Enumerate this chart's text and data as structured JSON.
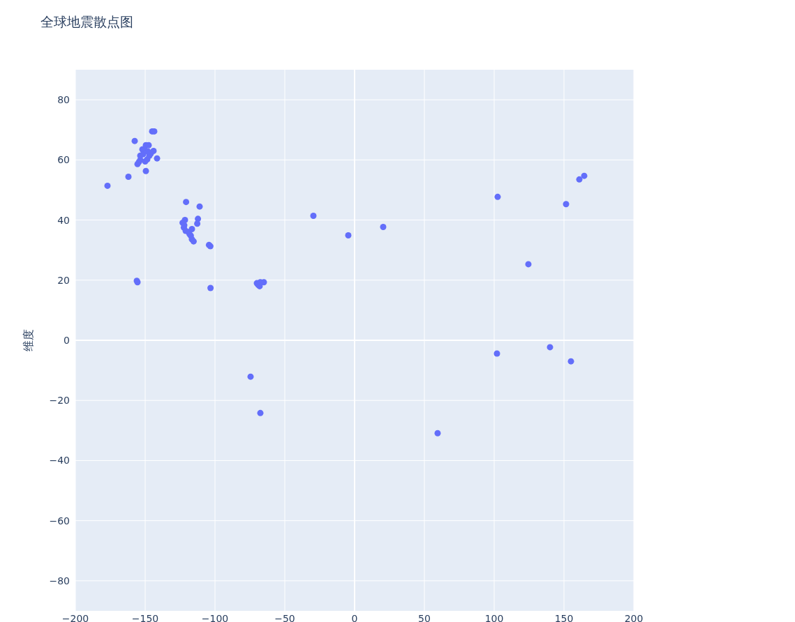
{
  "chart_data": {
    "type": "scatter",
    "title": "全球地震散点图",
    "ylabel": "维度",
    "x": [
      -177,
      -162,
      -157.5,
      -145,
      -143.5,
      -141.5,
      -144,
      -149.5,
      -155.5,
      -154.5,
      -153.5,
      -151.5,
      -152,
      -150.5,
      -149.5,
      -147.5,
      -148.5,
      -147,
      -146,
      -148,
      -150,
      -153.5,
      -120.7,
      -111,
      -112.2,
      -112.7,
      -121.5,
      -123.2,
      -122.3,
      -121,
      -119,
      -116.5,
      -117.3,
      -116.5,
      -115.3,
      -122,
      -118.2,
      -104.3,
      -103.3,
      -103.2,
      -156,
      -155.5,
      -74.5,
      -67.5,
      -70,
      -69,
      -68,
      -65,
      -67.5,
      -29.5,
      -4.5,
      20.5,
      59.5,
      102.5,
      102,
      124.5,
      140,
      151.5,
      155,
      161,
      164.5
    ],
    "values": [
      51.4,
      54.4,
      66.3,
      69.5,
      69.5,
      60.5,
      63,
      56.3,
      58.6,
      59.3,
      60,
      61.9,
      63.5,
      63.7,
      64.9,
      64.9,
      60.2,
      61.4,
      62.1,
      62.8,
      59.5,
      61.4,
      46,
      44.5,
      40.4,
      38.8,
      40,
      39.1,
      37.5,
      36.4,
      36,
      37,
      34.8,
      33.6,
      32.9,
      38.3,
      35.3,
      31.7,
      31.3,
      17.4,
      19.8,
      19.3,
      -12.1,
      -24.2,
      19,
      18.4,
      18,
      19.3,
      19.3,
      41.4,
      34.9,
      37.7,
      -30.9,
      47.7,
      -4.4,
      25.3,
      -2.3,
      45.3,
      -7,
      53.5,
      54.7
    ],
    "color": "#636efa",
    "marker": "circle",
    "xlim": [
      -200,
      200
    ],
    "ylim": [
      -90,
      90
    ],
    "xticks": [
      -200,
      -150,
      -100,
      -50,
      0,
      50,
      100,
      150,
      200
    ],
    "yticks": [
      -80,
      -60,
      -40,
      -20,
      0,
      20,
      40,
      60,
      80
    ],
    "grid": true
  }
}
